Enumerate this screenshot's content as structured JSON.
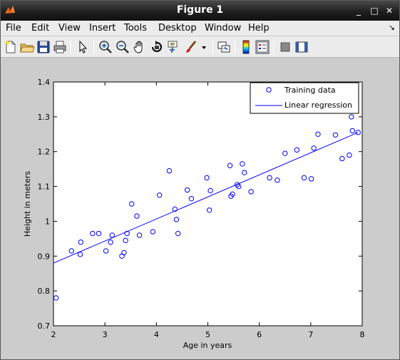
{
  "window": {
    "title": "Figure 1",
    "controls": {
      "minimize": "_",
      "maximize": "□",
      "close": "✕"
    }
  },
  "menubar": {
    "items": [
      {
        "label": "File",
        "name": "menu-file"
      },
      {
        "label": "Edit",
        "name": "menu-edit"
      },
      {
        "label": "View",
        "name": "menu-view"
      },
      {
        "label": "Insert",
        "name": "menu-insert"
      },
      {
        "label": "Tools",
        "name": "menu-tools"
      },
      {
        "label": "Desktop",
        "name": "menu-desktop"
      },
      {
        "label": "Window",
        "name": "menu-window"
      },
      {
        "label": "Help",
        "name": "menu-help"
      }
    ],
    "dock_arrow": "↘"
  },
  "toolbar": {
    "icons": [
      "new-figure-icon",
      "open-file-icon",
      "save-icon",
      "print-icon",
      "edit-plot-arrow-icon",
      "zoom-in-icon",
      "zoom-out-icon",
      "pan-hand-icon",
      "rotate-3d-icon",
      "data-cursor-icon",
      "brush-icon",
      "link-plot-icon",
      "colorbar-icon",
      "legend-icon",
      "hide-plot-tools-icon",
      "show-plot-tools-icon"
    ]
  },
  "colors": {
    "series": "#0000ff",
    "figure_bg": "#cccccc",
    "axes_bg": "#ffffff"
  },
  "chart_data": {
    "type": "scatter",
    "xlabel": "Age in years",
    "ylabel": "Height in meters",
    "xlim": [
      2,
      8
    ],
    "ylim": [
      0.7,
      1.4
    ],
    "xticks": [
      "2",
      "3",
      "4",
      "5",
      "6",
      "7",
      "8"
    ],
    "yticks": [
      "0.7",
      "0.8",
      "0.9",
      "1",
      "1.1",
      "1.2",
      "1.3",
      "1.4"
    ],
    "legend_position": "top-right",
    "series": [
      {
        "name": "Training data",
        "style": "circle",
        "x": [
          2.05,
          2.35,
          2.52,
          2.53,
          2.76,
          2.88,
          3.02,
          3.11,
          3.14,
          3.33,
          3.37,
          3.4,
          3.43,
          3.52,
          3.62,
          3.67,
          3.93,
          4.06,
          4.25,
          4.36,
          4.39,
          4.42,
          4.6,
          4.68,
          4.98,
          5.03,
          5.05,
          5.43,
          5.45,
          5.48,
          5.57,
          5.6,
          5.67,
          5.71,
          5.84,
          6.2,
          6.35,
          6.5,
          6.73,
          6.87,
          7.01,
          7.06,
          7.14,
          7.48,
          7.61,
          7.75,
          7.79,
          7.81,
          7.92
        ],
        "y": [
          0.78,
          0.915,
          0.905,
          0.94,
          0.965,
          0.965,
          0.915,
          0.94,
          0.96,
          0.9,
          0.91,
          0.945,
          0.965,
          1.05,
          1.015,
          0.96,
          0.97,
          1.075,
          1.145,
          1.035,
          1.005,
          0.965,
          1.09,
          1.065,
          1.125,
          1.032,
          1.088,
          1.16,
          1.072,
          1.078,
          1.105,
          1.1,
          1.165,
          1.14,
          1.085,
          1.125,
          1.118,
          1.195,
          1.205,
          1.125,
          1.122,
          1.21,
          1.25,
          1.248,
          1.18,
          1.19,
          1.3,
          1.26,
          1.255
        ]
      },
      {
        "name": "Linear regression",
        "style": "line",
        "x": [
          2.0,
          7.92
        ],
        "y": [
          0.88,
          1.255
        ]
      }
    ]
  }
}
